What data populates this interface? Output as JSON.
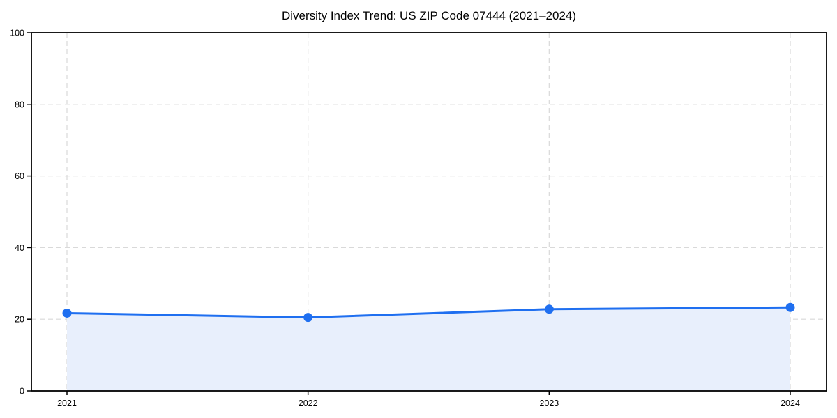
{
  "chart_data": {
    "type": "line",
    "title": "Diversity Index Trend: US ZIP Code 07444 (2021–2024)",
    "categories": [
      "2021",
      "2022",
      "2023",
      "2024"
    ],
    "values": [
      21.7,
      20.5,
      22.8,
      23.3
    ],
    "series_name": "Diversity Index",
    "xlabel": "",
    "ylabel": "",
    "ylim": [
      0,
      100
    ],
    "yticks": [
      0,
      20,
      40,
      60,
      80,
      100
    ],
    "grid": true,
    "legend": false,
    "area_fill": true,
    "marker": "circle",
    "colors": {
      "line": "#1f6ff0",
      "area": "#e8effc",
      "grid": "#d9d9d9",
      "spine": "#000000",
      "text": "#000000",
      "background": "#ffffff"
    }
  }
}
